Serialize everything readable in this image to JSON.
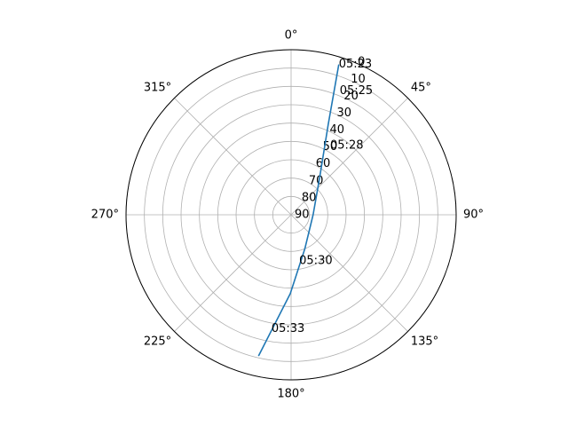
{
  "chart_data": {
    "type": "polar_line",
    "series": [
      {
        "color": "#1f77b4",
        "x": [
          17.6,
          22.4,
          37,
          90,
          158,
          180.6,
          193
        ],
        "values": [
          4,
          37,
          64,
          78,
          70,
          47,
          11
        ]
      }
    ],
    "ylim": [
      90,
      0
    ],
    "yticks": [
      0,
      10,
      20,
      30,
      40,
      50,
      60,
      70,
      80,
      90
    ],
    "xticks": [
      {
        "value": 0,
        "label": "0°"
      },
      {
        "value": 45,
        "label": "45°"
      },
      {
        "value": 90,
        "label": "90°"
      },
      {
        "value": 135,
        "label": "135°"
      },
      {
        "value": 180,
        "label": "180°"
      },
      {
        "value": 225,
        "label": "225°"
      },
      {
        "value": 270,
        "label": "270°"
      },
      {
        "value": 315,
        "label": "315°"
      }
    ],
    "grid": true,
    "annotations": [
      {
        "text": "05:23",
        "x": 17.6,
        "y": 4
      },
      {
        "text": "05:25",
        "x": 21.4,
        "y": 17.4
      },
      {
        "text": "05:28",
        "x": 29.4,
        "y": 46.6
      },
      {
        "text": "05:30",
        "x": 170,
        "y": 64.5
      },
      {
        "text": "05:33",
        "x": 189.8,
        "y": 27
      }
    ]
  }
}
